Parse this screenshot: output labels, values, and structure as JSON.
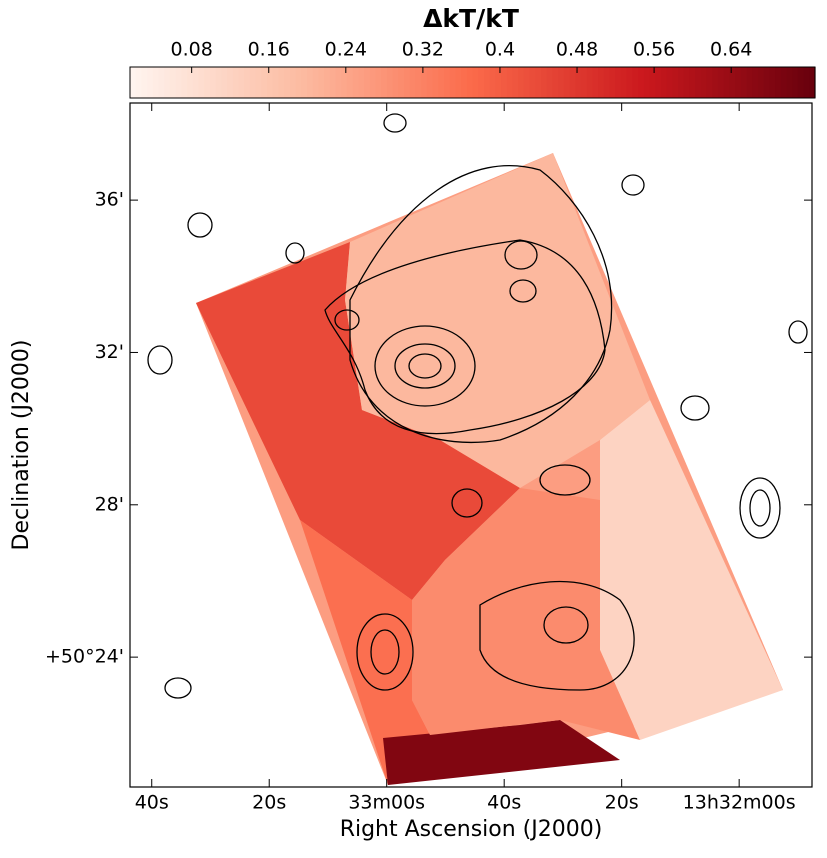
{
  "chart_data": {
    "type": "map",
    "colorbar_label": "ΔkT/kT",
    "clim": [
      0.016,
      0.727
    ],
    "cticks": [
      0.08,
      0.16,
      0.24,
      0.32,
      0.4,
      0.48,
      0.56,
      0.64
    ],
    "xlabel": "Right Ascension (J2000)",
    "ylabel": "Declination (J2000)",
    "xlim": [
      103.7,
      -12.4
    ],
    "xticks": [
      {
        "value": 100,
        "label": "40s"
      },
      {
        "value": 80,
        "label": "20s"
      },
      {
        "value": 60,
        "label": "33m00s"
      },
      {
        "value": 40,
        "label": "40s"
      },
      {
        "value": 20,
        "label": "20s"
      },
      {
        "value": 0,
        "label": "13h32m00s"
      }
    ],
    "ylim": [
      20.59,
      38.55
    ],
    "yticks": [
      {
        "value": 36,
        "label": "36'"
      },
      {
        "value": 32,
        "label": "32'"
      },
      {
        "value": 28,
        "label": "28'"
      },
      {
        "value": 24,
        "label": "+50°24'"
      }
    ],
    "regions": [
      0.26,
      0.44,
      0.36,
      0.2,
      0.12,
      0.68,
      0.3
    ]
  }
}
